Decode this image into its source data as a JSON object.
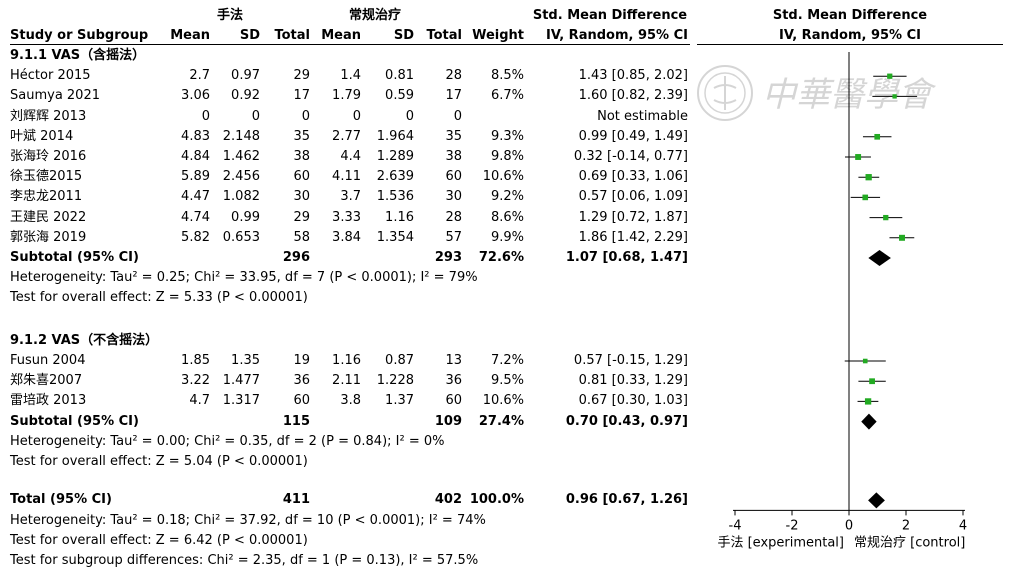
{
  "header": {
    "group1": "手法",
    "group2": "常规治疗",
    "effect_title": "Std. Mean Difference",
    "effect_sub": "IV, Random, 95% CI",
    "plot_title": "Std. Mean Difference",
    "plot_sub": "IV, Random, 95% CI",
    "cols": {
      "study": "Study or Subgroup",
      "mean1": "Mean",
      "sd1": "SD",
      "total1": "Total",
      "mean2": "Mean",
      "sd2": "SD",
      "total2": "Total",
      "weight": "Weight"
    }
  },
  "watermark": "中華醫學會",
  "subgroups": [
    {
      "title": "9.1.1 VAS（含摇法）",
      "studies": [
        {
          "name": "Héctor 2015",
          "mean1": "2.7",
          "sd1": "0.97",
          "n1": "29",
          "mean2": "1.4",
          "sd2": "0.81",
          "n2": "28",
          "weight": "8.5%",
          "ci": "1.43 [0.85, 2.02]",
          "est": 1.43,
          "lo": 0.85,
          "hi": 2.02
        },
        {
          "name": "Saumya 2021",
          "mean1": "3.06",
          "sd1": "0.92",
          "n1": "17",
          "mean2": "1.79",
          "sd2": "0.59",
          "n2": "17",
          "weight": "6.7%",
          "ci": "1.60 [0.82, 2.39]",
          "est": 1.6,
          "lo": 0.82,
          "hi": 2.39
        },
        {
          "name": "刘辉辉 2013",
          "mean1": "0",
          "sd1": "0",
          "n1": "0",
          "mean2": "0",
          "sd2": "0",
          "n2": "0",
          "weight": "",
          "ci": "Not estimable",
          "est": null,
          "lo": null,
          "hi": null
        },
        {
          "name": "叶斌 2014",
          "mean1": "4.83",
          "sd1": "2.148",
          "n1": "35",
          "mean2": "2.77",
          "sd2": "1.964",
          "n2": "35",
          "weight": "9.3%",
          "ci": "0.99 [0.49, 1.49]",
          "est": 0.99,
          "lo": 0.49,
          "hi": 1.49
        },
        {
          "name": "张海玲 2016",
          "mean1": "4.84",
          "sd1": "1.462",
          "n1": "38",
          "mean2": "4.4",
          "sd2": "1.289",
          "n2": "38",
          "weight": "9.8%",
          "ci": "0.32 [-0.14, 0.77]",
          "est": 0.32,
          "lo": -0.14,
          "hi": 0.77
        },
        {
          "name": "徐玉德2015",
          "mean1": "5.89",
          "sd1": "2.456",
          "n1": "60",
          "mean2": "4.11",
          "sd2": "2.639",
          "n2": "60",
          "weight": "10.6%",
          "ci": "0.69 [0.33, 1.06]",
          "est": 0.69,
          "lo": 0.33,
          "hi": 1.06
        },
        {
          "name": "李忠龙2011",
          "mean1": "4.47",
          "sd1": "1.082",
          "n1": "30",
          "mean2": "3.7",
          "sd2": "1.536",
          "n2": "30",
          "weight": "9.2%",
          "ci": "0.57 [0.06, 1.09]",
          "est": 0.57,
          "lo": 0.06,
          "hi": 1.09
        },
        {
          "name": "王建民 2022",
          "mean1": "4.74",
          "sd1": "0.99",
          "n1": "29",
          "mean2": "3.33",
          "sd2": "1.16",
          "n2": "28",
          "weight": "8.6%",
          "ci": "1.29 [0.72, 1.87]",
          "est": 1.29,
          "lo": 0.72,
          "hi": 1.87
        },
        {
          "name": "郭张海 2019",
          "mean1": "5.82",
          "sd1": "0.653",
          "n1": "58",
          "mean2": "3.84",
          "sd2": "1.354",
          "n2": "57",
          "weight": "9.9%",
          "ci": "1.86 [1.42, 2.29]",
          "est": 1.86,
          "lo": 1.42,
          "hi": 2.29
        }
      ],
      "subtotal": {
        "label": "Subtotal (95% CI)",
        "n1": "296",
        "n2": "293",
        "weight": "72.6%",
        "ci": "1.07 [0.68, 1.47]",
        "est": 1.07,
        "lo": 0.68,
        "hi": 1.47
      },
      "heterogeneity": "Heterogeneity: Tau² = 0.25; Chi² = 33.95, df = 7 (P < 0.0001); I² = 79%",
      "overall": "Test for overall effect: Z = 5.33 (P < 0.00001)"
    },
    {
      "title": "9.1.2 VAS（不含摇法）",
      "studies": [
        {
          "name": "Fusun 2004",
          "mean1": "1.85",
          "sd1": "1.35",
          "n1": "19",
          "mean2": "1.16",
          "sd2": "0.87",
          "n2": "13",
          "weight": "7.2%",
          "ci": "0.57 [-0.15, 1.29]",
          "est": 0.57,
          "lo": -0.15,
          "hi": 1.29
        },
        {
          "name": "郑朱喜2007",
          "mean1": "3.22",
          "sd1": "1.477",
          "n1": "36",
          "mean2": "2.11",
          "sd2": "1.228",
          "n2": "36",
          "weight": "9.5%",
          "ci": "0.81 [0.33, 1.29]",
          "est": 0.81,
          "lo": 0.33,
          "hi": 1.29
        },
        {
          "name": "雷培政 2013",
          "mean1": "4.7",
          "sd1": "1.317",
          "n1": "60",
          "mean2": "3.8",
          "sd2": "1.37",
          "n2": "60",
          "weight": "10.6%",
          "ci": "0.67 [0.30, 1.03]",
          "est": 0.67,
          "lo": 0.3,
          "hi": 1.03
        }
      ],
      "subtotal": {
        "label": "Subtotal (95% CI)",
        "n1": "115",
        "n2": "109",
        "weight": "27.4%",
        "ci": "0.70 [0.43, 0.97]",
        "est": 0.7,
        "lo": 0.43,
        "hi": 0.97
      },
      "heterogeneity": "Heterogeneity: Tau² = 0.00; Chi² = 0.35, df = 2 (P = 0.84); I² = 0%",
      "overall": "Test for overall effect: Z = 5.04 (P < 0.00001)"
    }
  ],
  "total": {
    "label": "Total (95% CI)",
    "n1": "411",
    "n2": "402",
    "weight": "100.0%",
    "ci": "0.96 [0.67, 1.26]",
    "est": 0.96,
    "lo": 0.67,
    "hi": 1.26
  },
  "total_heterogeneity": "Heterogeneity: Tau² = 0.18; Chi² = 37.92, df = 10 (P < 0.0001); I² = 74%",
  "total_overall": "Test for overall effect: Z = 6.42 (P < 0.00001)",
  "subgroup_diff": "Test for subgroup differences: Chi² = 2.35, df = 1 (P = 0.13), I² = 57.5%",
  "axis": {
    "ticks": [
      "-4",
      "-2",
      "0",
      "2",
      "4"
    ],
    "favours_left": "手法 [experimental]",
    "favours_right": "常规治疗 [control]"
  },
  "chart_data": {
    "type": "forest",
    "xlim": [
      -4,
      4
    ],
    "xticks": [
      -4,
      -2,
      0,
      2,
      4
    ],
    "marker_color": "#22aa22",
    "diamond_color": "#000000"
  }
}
